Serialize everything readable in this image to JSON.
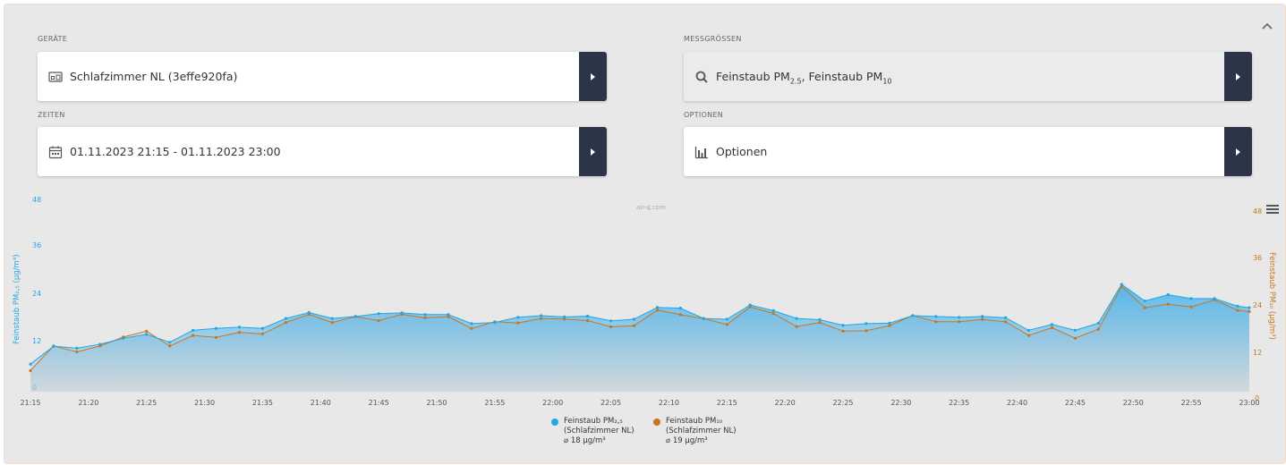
{
  "filters": {
    "devices": {
      "label": "GERÄTE",
      "value": "Schlafzimmer NL (3effe920fa)",
      "icon": "device-icon"
    },
    "measures": {
      "label": "MESSGRÖSSEN",
      "value_prefix": "Feinstaub PM",
      "value_sub1": "2.5",
      "value_mid": ", Feinstaub PM",
      "value_sub2": "10",
      "icon": "search-icon"
    },
    "times": {
      "label": "ZEITEN",
      "value": "01.11.2023 21:15 - 01.11.2023 23:00",
      "icon": "calendar-icon"
    },
    "options": {
      "label": "OPTIONEN",
      "value": "Optionen",
      "icon": "bar-chart-icon"
    }
  },
  "colors": {
    "pm25": "#24a6e3",
    "pm10": "#c8761e",
    "button": "#2c3447"
  },
  "chart_data": {
    "type": "area",
    "credits": "air-q.com",
    "y_left": {
      "label": "Feinstaub PM₂,₅ (µg/m³)",
      "ticks": [
        "48",
        "36",
        "24",
        "12",
        "0"
      ],
      "range": [
        0,
        48
      ]
    },
    "y_right": {
      "label": "Feinstaub PM₁₀ (µg/m³)",
      "ticks": [
        "48",
        "36",
        "24",
        "12",
        "0"
      ],
      "range": [
        0,
        48
      ]
    },
    "x_ticks": [
      "21:15",
      "21:20",
      "21:25",
      "21:30",
      "21:35",
      "21:40",
      "21:45",
      "21:50",
      "21:55",
      "22:00",
      "22:05",
      "22:10",
      "22:15",
      "22:20",
      "22:25",
      "22:30",
      "22:35",
      "22:40",
      "22:45",
      "22:50",
      "22:55",
      "23:00"
    ],
    "x_range_minutes": [
      0,
      105
    ],
    "series": [
      {
        "name": "Feinstaub PM₂,₅",
        "name_line2": "(Schlafzimmer NL)",
        "avg": "⌀ 18 µg/m³",
        "color": "#24a6e3",
        "x_minutes": [
          0,
          2,
          4,
          6,
          8,
          10,
          12,
          14,
          16,
          18,
          20,
          22,
          24,
          26,
          28,
          30,
          32,
          34,
          36,
          38,
          40,
          42,
          44,
          46,
          48,
          50,
          52,
          54,
          56,
          58,
          60,
          62,
          64,
          66,
          68,
          70,
          72,
          74,
          76,
          78,
          80,
          82,
          84,
          86,
          88,
          90,
          92,
          94,
          96,
          98,
          100,
          102,
          104,
          105
        ],
        "values": [
          6.5,
          11,
          10.5,
          11.5,
          13,
          14,
          12,
          15,
          15.5,
          15.8,
          15.5,
          18,
          19.5,
          18,
          18.5,
          19.2,
          19.4,
          19,
          19,
          16.7,
          17,
          18.3,
          18.7,
          18.4,
          18.6,
          17.4,
          17.8,
          20.8,
          20.6,
          18,
          17.8,
          21.4,
          20,
          18,
          17.7,
          16.3,
          16.7,
          16.8,
          18.7,
          18.5,
          18.3,
          18.5,
          18.2,
          15,
          16.5,
          15,
          16.8,
          26.6,
          22.4,
          24,
          23,
          23,
          21.1,
          20.7
        ]
      },
      {
        "name": "Feinstaub PM₁₀",
        "name_line2": "(Schlafzimmer NL)",
        "avg": "⌀ 19 µg/m³",
        "color": "#c8761e",
        "x_minutes": [
          0,
          2,
          4,
          6,
          8,
          10,
          12,
          14,
          16,
          18,
          20,
          22,
          24,
          26,
          28,
          30,
          32,
          34,
          36,
          38,
          40,
          42,
          44,
          46,
          48,
          50,
          52,
          54,
          56,
          58,
          60,
          62,
          64,
          66,
          68,
          70,
          72,
          74,
          76,
          78,
          80,
          82,
          84,
          86,
          88,
          90,
          92,
          94,
          96,
          98,
          100,
          102,
          104,
          105
        ],
        "values": [
          7.2,
          13.5,
          12,
          13.5,
          15.8,
          17.3,
          13.5,
          16.2,
          15.7,
          17,
          16.6,
          19.5,
          21.6,
          19.5,
          21,
          20,
          21.6,
          20.7,
          21,
          18,
          19.7,
          19.4,
          20.5,
          20.4,
          20,
          18.4,
          18.7,
          22.7,
          21.5,
          20.5,
          19,
          23.5,
          21.8,
          18.5,
          19.5,
          17.3,
          17.4,
          18.7,
          21.3,
          19.7,
          19.7,
          20.3,
          19.7,
          16.2,
          18.2,
          15.5,
          17.8,
          28.7,
          23.3,
          24.2,
          23.5,
          25.3,
          22.6,
          22.3
        ]
      }
    ],
    "legend": "bottom-center",
    "grid": false
  }
}
